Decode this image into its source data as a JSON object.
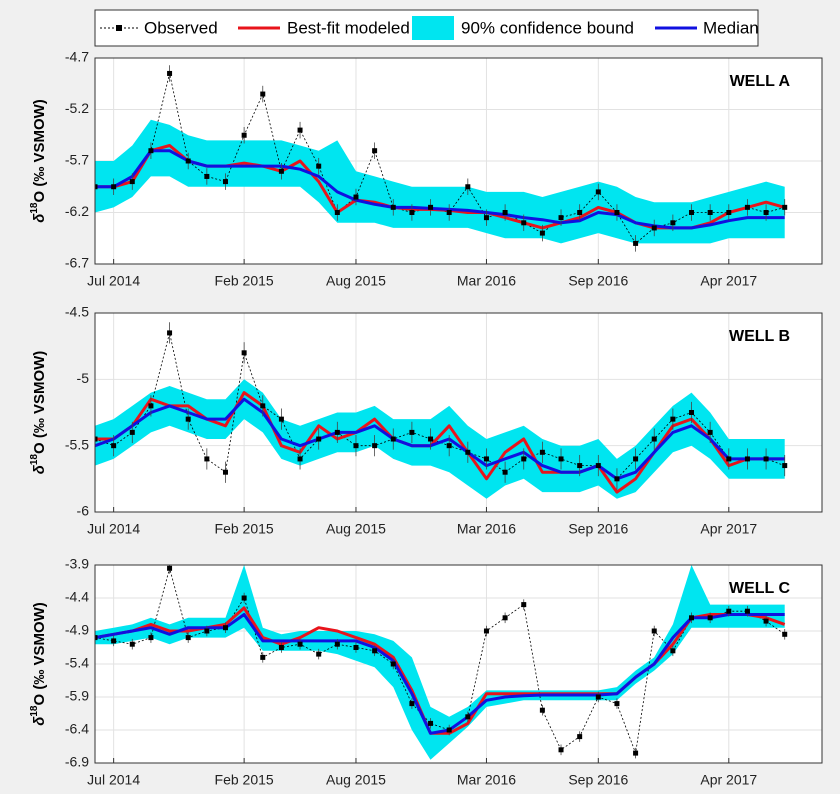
{
  "chart_data": [
    {
      "type": "line",
      "title": "WELL A",
      "ylabel": {
        "symbol": "δ",
        "superscript": "18",
        "rest": "O (‰ VSMOW)"
      },
      "x": [
        "2014-06",
        "2014-07",
        "2014-08",
        "2014-09",
        "2014-10",
        "2014-11",
        "2014-12",
        "2015-01",
        "2015-02",
        "2015-03",
        "2015-04",
        "2015-05",
        "2015-06",
        "2015-07",
        "2015-08",
        "2015-09",
        "2015-10",
        "2015-11",
        "2015-12",
        "2016-01",
        "2016-02",
        "2016-03",
        "2016-04",
        "2016-05",
        "2016-06",
        "2016-07",
        "2016-08",
        "2016-09",
        "2016-10",
        "2016-11",
        "2016-12",
        "2017-01",
        "2017-02",
        "2017-03",
        "2017-04",
        "2017-05",
        "2017-06",
        "2017-07"
      ],
      "xlim": [
        "2014-06",
        "2017-09"
      ],
      "xticks": [
        {
          "value": "2014-07",
          "label": "Jul 2014"
        },
        {
          "value": "2015-02",
          "label": "Feb 2015"
        },
        {
          "value": "2015-08",
          "label": "Aug 2015"
        },
        {
          "value": "2016-03",
          "label": "Mar 2016"
        },
        {
          "value": "2016-09",
          "label": "Sep 2016"
        },
        {
          "value": "2017-04",
          "label": "Apr 2017"
        }
      ],
      "ylim": [
        -6.7,
        -4.7
      ],
      "yticks": [
        -6.7,
        -6.2,
        -5.7,
        -5.2,
        -4.7
      ],
      "grid": true,
      "series": [
        {
          "name": "Observed",
          "color": "#000000",
          "error": 0.08,
          "values": [
            -5.95,
            -5.95,
            -5.9,
            -5.6,
            -4.85,
            -5.7,
            -5.85,
            -5.9,
            -5.45,
            -5.05,
            -5.8,
            -5.4,
            -5.75,
            -6.2,
            -6.05,
            -5.6,
            -6.15,
            -6.2,
            -6.15,
            -6.2,
            -5.95,
            -6.25,
            -6.2,
            -6.3,
            -6.4,
            -6.25,
            -6.2,
            -6.0,
            -6.2,
            -6.5,
            -6.35,
            -6.3,
            -6.2,
            -6.2,
            -6.2,
            -6.15,
            -6.2,
            -6.15
          ]
        },
        {
          "name": "Best-fit modeled",
          "color": "#e8141b",
          "values": [
            -5.95,
            -5.95,
            -5.9,
            -5.6,
            -5.55,
            -5.7,
            -5.75,
            -5.75,
            -5.72,
            -5.75,
            -5.8,
            -5.7,
            -5.9,
            -6.2,
            -6.08,
            -6.1,
            -6.15,
            -6.17,
            -6.17,
            -6.18,
            -6.2,
            -6.2,
            -6.25,
            -6.3,
            -6.35,
            -6.3,
            -6.25,
            -6.15,
            -6.2,
            -6.3,
            -6.35,
            -6.35,
            -6.35,
            -6.3,
            -6.2,
            -6.15,
            -6.1,
            -6.15
          ]
        },
        {
          "name": "90% confidence bound",
          "color": "#00e5f0",
          "lower": [
            -6.2,
            -6.15,
            -6.05,
            -5.85,
            -5.85,
            -5.95,
            -5.95,
            -5.95,
            -5.95,
            -5.95,
            -5.95,
            -5.95,
            -6.1,
            -6.3,
            -6.3,
            -6.3,
            -6.35,
            -6.35,
            -6.35,
            -6.35,
            -6.35,
            -6.4,
            -6.45,
            -6.45,
            -6.45,
            -6.5,
            -6.45,
            -6.4,
            -6.45,
            -6.5,
            -6.5,
            -6.5,
            -6.5,
            -6.5,
            -6.45,
            -6.45,
            -6.45,
            -6.45
          ],
          "upper": [
            -5.7,
            -5.7,
            -5.55,
            -5.3,
            -5.35,
            -5.45,
            -5.5,
            -5.5,
            -5.5,
            -5.5,
            -5.5,
            -5.55,
            -5.6,
            -5.5,
            -5.8,
            -5.85,
            -5.9,
            -5.95,
            -5.95,
            -5.95,
            -5.95,
            -6.0,
            -6.0,
            -6.0,
            -6.05,
            -6.0,
            -5.95,
            -5.9,
            -5.95,
            -6.05,
            -6.1,
            -6.1,
            -6.1,
            -6.05,
            -6.0,
            -5.95,
            -5.9,
            -5.95
          ]
        },
        {
          "name": "Median",
          "color": "#1010e0",
          "values": [
            -5.95,
            -5.95,
            -5.85,
            -5.6,
            -5.6,
            -5.7,
            -5.75,
            -5.75,
            -5.75,
            -5.75,
            -5.75,
            -5.78,
            -5.85,
            -6.0,
            -6.08,
            -6.12,
            -6.15,
            -6.15,
            -6.16,
            -6.17,
            -6.18,
            -6.2,
            -6.22,
            -6.25,
            -6.27,
            -6.3,
            -6.28,
            -6.2,
            -6.22,
            -6.3,
            -6.33,
            -6.35,
            -6.35,
            -6.32,
            -6.28,
            -6.25,
            -6.25,
            -6.25
          ]
        }
      ]
    },
    {
      "type": "line",
      "title": "WELL B",
      "ylabel": {
        "symbol": "δ",
        "superscript": "18",
        "rest": "O (‰ VSMOW)"
      },
      "x": [
        "2014-06",
        "2014-07",
        "2014-08",
        "2014-09",
        "2014-10",
        "2014-11",
        "2014-12",
        "2015-01",
        "2015-02",
        "2015-03",
        "2015-04",
        "2015-05",
        "2015-06",
        "2015-07",
        "2015-08",
        "2015-09",
        "2015-10",
        "2015-11",
        "2015-12",
        "2016-01",
        "2016-02",
        "2016-03",
        "2016-04",
        "2016-05",
        "2016-06",
        "2016-07",
        "2016-08",
        "2016-09",
        "2016-10",
        "2016-11",
        "2016-12",
        "2017-01",
        "2017-02",
        "2017-03",
        "2017-04",
        "2017-05",
        "2017-06",
        "2017-07"
      ],
      "xlim": [
        "2014-06",
        "2017-09"
      ],
      "xticks": [
        {
          "value": "2014-07",
          "label": "Jul 2014"
        },
        {
          "value": "2015-02",
          "label": "Feb 2015"
        },
        {
          "value": "2015-08",
          "label": "Aug 2015"
        },
        {
          "value": "2016-03",
          "label": "Mar 2016"
        },
        {
          "value": "2016-09",
          "label": "Sep 2016"
        },
        {
          "value": "2017-04",
          "label": "Apr 2017"
        }
      ],
      "ylim": [
        -6,
        -4.5
      ],
      "yticks": [
        -6,
        -5.5,
        -5,
        -4.5
      ],
      "grid": true,
      "series": [
        {
          "name": "Observed",
          "color": "#000000",
          "error": 0.08,
          "values": [
            -5.45,
            -5.5,
            -5.4,
            -5.2,
            -4.65,
            -5.3,
            -5.6,
            -5.7,
            -4.8,
            -5.2,
            -5.3,
            -5.6,
            -5.45,
            -5.4,
            -5.5,
            -5.5,
            -5.45,
            -5.4,
            -5.45,
            -5.5,
            -5.55,
            -5.6,
            -5.7,
            -5.6,
            -5.55,
            -5.6,
            -5.65,
            -5.65,
            -5.75,
            -5.6,
            -5.45,
            -5.3,
            -5.25,
            -5.4,
            -5.6,
            -5.6,
            -5.6,
            -5.65
          ]
        },
        {
          "name": "Best-fit modeled",
          "color": "#e8141b",
          "values": [
            -5.45,
            -5.45,
            -5.35,
            -5.15,
            -5.2,
            -5.2,
            -5.3,
            -5.35,
            -5.1,
            -5.2,
            -5.5,
            -5.55,
            -5.35,
            -5.45,
            -5.4,
            -5.3,
            -5.45,
            -5.5,
            -5.5,
            -5.35,
            -5.55,
            -5.75,
            -5.55,
            -5.45,
            -5.7,
            -5.7,
            -5.7,
            -5.65,
            -5.85,
            -5.75,
            -5.55,
            -5.35,
            -5.3,
            -5.45,
            -5.65,
            -5.6,
            -5.6,
            -5.6
          ]
        },
        {
          "name": "90% confidence bound",
          "color": "#00e5f0",
          "lower": [
            -5.65,
            -5.6,
            -5.5,
            -5.4,
            -5.35,
            -5.4,
            -5.45,
            -5.45,
            -5.3,
            -5.4,
            -5.6,
            -5.65,
            -5.6,
            -5.55,
            -5.55,
            -5.5,
            -5.6,
            -5.65,
            -5.65,
            -5.7,
            -5.8,
            -5.9,
            -5.8,
            -5.75,
            -5.85,
            -5.85,
            -5.85,
            -5.8,
            -5.9,
            -5.85,
            -5.7,
            -5.55,
            -5.5,
            -5.6,
            -5.75,
            -5.75,
            -5.75,
            -5.75
          ],
          "upper": [
            -5.35,
            -5.3,
            -5.2,
            -5.1,
            -5.05,
            -5.1,
            -5.15,
            -5.15,
            -5.0,
            -5.1,
            -5.3,
            -5.35,
            -5.3,
            -5.25,
            -5.25,
            -5.2,
            -5.3,
            -5.3,
            -5.3,
            -5.2,
            -5.35,
            -5.45,
            -5.4,
            -5.35,
            -5.45,
            -5.5,
            -5.5,
            -5.45,
            -5.6,
            -5.5,
            -5.35,
            -5.2,
            -5.1,
            -5.25,
            -5.45,
            -5.45,
            -5.45,
            -5.45
          ]
        },
        {
          "name": "Median",
          "color": "#1010e0",
          "values": [
            -5.5,
            -5.45,
            -5.35,
            -5.25,
            -5.2,
            -5.25,
            -5.3,
            -5.3,
            -5.15,
            -5.25,
            -5.45,
            -5.5,
            -5.45,
            -5.4,
            -5.4,
            -5.35,
            -5.45,
            -5.5,
            -5.5,
            -5.45,
            -5.55,
            -5.65,
            -5.6,
            -5.55,
            -5.65,
            -5.7,
            -5.7,
            -5.65,
            -5.75,
            -5.7,
            -5.55,
            -5.4,
            -5.35,
            -5.45,
            -5.6,
            -5.6,
            -5.6,
            -5.6
          ]
        }
      ]
    },
    {
      "type": "line",
      "title": "WELL C",
      "ylabel": {
        "symbol": "δ",
        "superscript": "18",
        "rest": "O (‰ VSMOW)"
      },
      "x": [
        "2014-06",
        "2014-07",
        "2014-08",
        "2014-09",
        "2014-10",
        "2014-11",
        "2014-12",
        "2015-01",
        "2015-02",
        "2015-03",
        "2015-04",
        "2015-05",
        "2015-06",
        "2015-07",
        "2015-08",
        "2015-09",
        "2015-10",
        "2015-11",
        "2015-12",
        "2016-01",
        "2016-02",
        "2016-03",
        "2016-04",
        "2016-05",
        "2016-06",
        "2016-07",
        "2016-08",
        "2016-09",
        "2016-10",
        "2016-11",
        "2016-12",
        "2017-01",
        "2017-02",
        "2017-03",
        "2017-04",
        "2017-05",
        "2017-06",
        "2017-07"
      ],
      "xlim": [
        "2014-06",
        "2017-09"
      ],
      "xticks": [
        {
          "value": "2014-07",
          "label": "Jul 2014"
        },
        {
          "value": "2015-02",
          "label": "Feb 2015"
        },
        {
          "value": "2015-08",
          "label": "Aug 2015"
        },
        {
          "value": "2016-03",
          "label": "Mar 2016"
        },
        {
          "value": "2016-09",
          "label": "Sep 2016"
        },
        {
          "value": "2017-04",
          "label": "Apr 2017"
        }
      ],
      "ylim": [
        -6.9,
        -3.9
      ],
      "yticks": [
        -6.9,
        -6.4,
        -5.9,
        -5.4,
        -4.9,
        -4.4,
        -3.9
      ],
      "grid": true,
      "series": [
        {
          "name": "Observed",
          "color": "#000000",
          "error": 0.08,
          "values": [
            -5.0,
            -5.05,
            -5.1,
            -5.0,
            -3.95,
            -5.0,
            -4.9,
            -4.85,
            -4.4,
            -5.3,
            -5.15,
            -5.1,
            -5.25,
            -5.1,
            -5.15,
            -5.2,
            -5.4,
            -6.0,
            -6.3,
            -6.4,
            -6.2,
            -4.9,
            -4.7,
            -4.5,
            -6.1,
            -6.7,
            -6.5,
            -5.9,
            -6.0,
            -6.75,
            -4.9,
            -5.2,
            -4.7,
            -4.7,
            -4.6,
            -4.6,
            -4.75,
            -4.95
          ]
        },
        {
          "name": "Best-fit modeled",
          "color": "#e8141b",
          "values": [
            -5.0,
            -4.95,
            -4.9,
            -4.8,
            -4.9,
            -4.9,
            -4.85,
            -4.8,
            -4.55,
            -5.0,
            -5.1,
            -5.0,
            -4.85,
            -4.9,
            -5.0,
            -5.1,
            -5.3,
            -5.8,
            -6.45,
            -6.45,
            -6.3,
            -5.85,
            -5.85,
            -5.85,
            -5.85,
            -5.85,
            -5.85,
            -5.85,
            -5.85,
            -5.6,
            -5.4,
            -5.1,
            -4.7,
            -4.65,
            -4.65,
            -4.65,
            -4.7,
            -4.8
          ]
        },
        {
          "name": "90% confidence bound",
          "color": "#00e5f0",
          "lower": [
            -5.1,
            -5.1,
            -5.05,
            -5.0,
            -5.1,
            -5.0,
            -5.0,
            -5.0,
            -4.85,
            -5.2,
            -5.2,
            -5.2,
            -5.2,
            -5.25,
            -5.35,
            -5.45,
            -5.75,
            -6.4,
            -6.85,
            -6.6,
            -6.35,
            -6.05,
            -6.0,
            -5.95,
            -5.95,
            -5.95,
            -5.95,
            -5.95,
            -5.95,
            -5.7,
            -5.5,
            -5.25,
            -4.85,
            -4.85,
            -4.85,
            -4.85,
            -4.85,
            -4.85
          ],
          "upper": [
            -4.9,
            -4.85,
            -4.8,
            -4.7,
            -4.8,
            -4.7,
            -4.7,
            -4.7,
            -3.9,
            -4.85,
            -4.95,
            -4.9,
            -4.9,
            -4.9,
            -4.9,
            -4.95,
            -5.05,
            -5.3,
            -6.05,
            -6.2,
            -6.05,
            -5.8,
            -5.8,
            -5.8,
            -5.8,
            -5.8,
            -5.8,
            -5.8,
            -5.75,
            -5.5,
            -5.3,
            -4.8,
            -3.9,
            -4.5,
            -4.5,
            -4.5,
            -4.5,
            -4.5
          ]
        },
        {
          "name": "Median",
          "color": "#1010e0",
          "values": [
            -5.0,
            -4.95,
            -4.9,
            -4.85,
            -4.95,
            -4.85,
            -4.85,
            -4.85,
            -4.65,
            -5.05,
            -5.05,
            -5.05,
            -5.05,
            -5.05,
            -5.05,
            -5.15,
            -5.35,
            -5.85,
            -6.45,
            -6.4,
            -6.2,
            -5.95,
            -5.9,
            -5.88,
            -5.87,
            -5.87,
            -5.87,
            -5.87,
            -5.85,
            -5.6,
            -5.4,
            -5.0,
            -4.7,
            -4.7,
            -4.65,
            -4.65,
            -4.65,
            -4.65
          ]
        }
      ]
    }
  ]
}
